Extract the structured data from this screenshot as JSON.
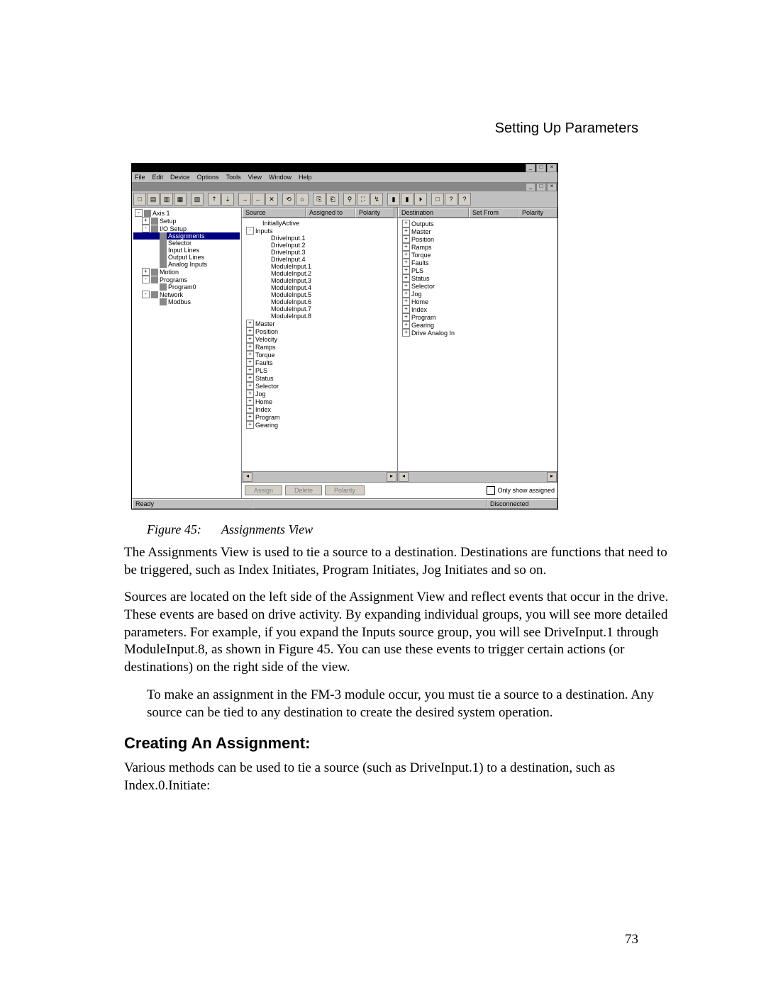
{
  "header": {
    "section_title": "Setting Up Parameters"
  },
  "page_number": "73",
  "screenshot": {
    "menubar": [
      "File",
      "Edit",
      "Device",
      "Options",
      "Tools",
      "View",
      "Window",
      "Help"
    ],
    "titlebar_buttons": [
      "_",
      "□",
      "×"
    ],
    "mdi_buttons": [
      "_",
      "□",
      "×"
    ],
    "toolbar_icons": [
      "□",
      "▤",
      "▥",
      "▦",
      "",
      "▧",
      "",
      "⇡",
      "⇣",
      "",
      "→",
      "←",
      "✕",
      "",
      "⟲",
      "⌂",
      "",
      "⎘",
      "⎗",
      "",
      "⚲",
      "⛶",
      "↯",
      "",
      "▮",
      "▮",
      "⏵",
      "",
      "□",
      "?",
      "?"
    ],
    "nav_tree": [
      {
        "exp": "-",
        "indent": 0,
        "icon": "axis-icon",
        "label": "Axis 1"
      },
      {
        "exp": "+",
        "indent": 1,
        "icon": "setup-icon",
        "label": "Setup"
      },
      {
        "exp": "-",
        "indent": 1,
        "icon": "io-icon",
        "label": "I/O Setup"
      },
      {
        "exp": "",
        "indent": 2,
        "icon": "assign-icon",
        "label": "Assignments",
        "selected": true
      },
      {
        "exp": "",
        "indent": 2,
        "icon": "selector-icon",
        "label": "Selector"
      },
      {
        "exp": "",
        "indent": 2,
        "icon": "input-icon",
        "label": "Input Lines"
      },
      {
        "exp": "",
        "indent": 2,
        "icon": "output-icon",
        "label": "Output Lines"
      },
      {
        "exp": "",
        "indent": 2,
        "icon": "analog-icon",
        "label": "Analog Inputs"
      },
      {
        "exp": "+",
        "indent": 1,
        "icon": "motion-icon",
        "label": "Motion"
      },
      {
        "exp": "-",
        "indent": 1,
        "icon": "programs-icon",
        "label": "Programs"
      },
      {
        "exp": "",
        "indent": 2,
        "icon": "program-icon",
        "label": "Program0"
      },
      {
        "exp": "-",
        "indent": 1,
        "icon": "network-icon",
        "label": "Network"
      },
      {
        "exp": "",
        "indent": 2,
        "icon": "modbus-icon",
        "label": "Modbus"
      }
    ],
    "source_headers": {
      "c1": "Source",
      "c2": "Assigned to",
      "c3": "Polarity",
      "w1": 90,
      "w2": 70,
      "w3": 55
    },
    "dest_headers": {
      "c1": "Destination",
      "c2": "Set From",
      "c3": "Polarity",
      "w1": 100,
      "w2": 70,
      "w3": 55
    },
    "source_tree": [
      {
        "exp": "",
        "indent": 1,
        "label": "InitiallyActive"
      },
      {
        "exp": "-",
        "indent": 0,
        "label": "Inputs"
      },
      {
        "exp": "",
        "indent": 2,
        "label": "DriveInput.1"
      },
      {
        "exp": "",
        "indent": 2,
        "label": "DriveInput.2"
      },
      {
        "exp": "",
        "indent": 2,
        "label": "DriveInput.3"
      },
      {
        "exp": "",
        "indent": 2,
        "label": "DriveInput.4"
      },
      {
        "exp": "",
        "indent": 2,
        "label": "ModuleInput.1"
      },
      {
        "exp": "",
        "indent": 2,
        "label": "ModuleInput.2"
      },
      {
        "exp": "",
        "indent": 2,
        "label": "ModuleInput.3"
      },
      {
        "exp": "",
        "indent": 2,
        "label": "ModuleInput.4"
      },
      {
        "exp": "",
        "indent": 2,
        "label": "ModuleInput.5"
      },
      {
        "exp": "",
        "indent": 2,
        "label": "ModuleInput.6"
      },
      {
        "exp": "",
        "indent": 2,
        "label": "ModuleInput.7"
      },
      {
        "exp": "",
        "indent": 2,
        "label": "ModuleInput.8"
      },
      {
        "exp": "+",
        "indent": 0,
        "label": "Master"
      },
      {
        "exp": "+",
        "indent": 0,
        "label": "Position"
      },
      {
        "exp": "+",
        "indent": 0,
        "label": "Velocity"
      },
      {
        "exp": "+",
        "indent": 0,
        "label": "Ramps"
      },
      {
        "exp": "+",
        "indent": 0,
        "label": "Torque"
      },
      {
        "exp": "+",
        "indent": 0,
        "label": "Faults"
      },
      {
        "exp": "+",
        "indent": 0,
        "label": "PLS"
      },
      {
        "exp": "+",
        "indent": 0,
        "label": "Status"
      },
      {
        "exp": "+",
        "indent": 0,
        "label": "Selector"
      },
      {
        "exp": "+",
        "indent": 0,
        "label": "Jog"
      },
      {
        "exp": "+",
        "indent": 0,
        "label": "Home"
      },
      {
        "exp": "+",
        "indent": 0,
        "label": "Index"
      },
      {
        "exp": "+",
        "indent": 0,
        "label": "Program"
      },
      {
        "exp": "+",
        "indent": 0,
        "label": "Gearing"
      }
    ],
    "dest_tree": [
      {
        "exp": "+",
        "indent": 0,
        "label": "Outputs"
      },
      {
        "exp": "+",
        "indent": 0,
        "label": "Master"
      },
      {
        "exp": "+",
        "indent": 0,
        "label": "Position"
      },
      {
        "exp": "+",
        "indent": 0,
        "label": "Ramps"
      },
      {
        "exp": "+",
        "indent": 0,
        "label": "Torque"
      },
      {
        "exp": "+",
        "indent": 0,
        "label": "Faults"
      },
      {
        "exp": "+",
        "indent": 0,
        "label": "PLS"
      },
      {
        "exp": "+",
        "indent": 0,
        "label": "Status"
      },
      {
        "exp": "+",
        "indent": 0,
        "label": "Selector"
      },
      {
        "exp": "+",
        "indent": 0,
        "label": "Jog"
      },
      {
        "exp": "+",
        "indent": 0,
        "label": "Home"
      },
      {
        "exp": "+",
        "indent": 0,
        "label": "Index"
      },
      {
        "exp": "+",
        "indent": 0,
        "label": "Program"
      },
      {
        "exp": "+",
        "indent": 0,
        "label": "Gearing"
      },
      {
        "exp": "+",
        "indent": 0,
        "label": "Drive Analog In"
      }
    ],
    "buttons": {
      "assign": "Assign",
      "delete": "Delete",
      "polarity": "Polarity"
    },
    "checkbox_label": "Only show assigned",
    "status_left": "Ready",
    "status_right": "Disconnected"
  },
  "caption": {
    "fig": "Figure 45:",
    "title": "Assignments View"
  },
  "para1": "The Assignments View is used to tie a source to a destination. Destinations are functions that need to be triggered, such as Index Initiates, Program Initiates, Jog Initiates and so on.",
  "para2": "Sources are located on the left side of the Assignment View and reflect events that occur in the drive. These events are based on drive activity. By expanding individual groups, you will see more detailed parameters. For example, if you expand the Inputs source group, you will see DriveInput.1 through ModuleInput.8, as shown in Figure 45. You can use these events to trigger certain actions (or destinations) on the right side of the view.",
  "para3": "To make an assignment in the FM-3 module occur, you must tie a source to a destination. Any source can be tied to any destination to create the desired system operation.",
  "heading": "Creating An Assignment:",
  "para4": "Various methods can be used to tie a source (such as DriveInput.1) to a destination, such as Index.0.Initiate:"
}
